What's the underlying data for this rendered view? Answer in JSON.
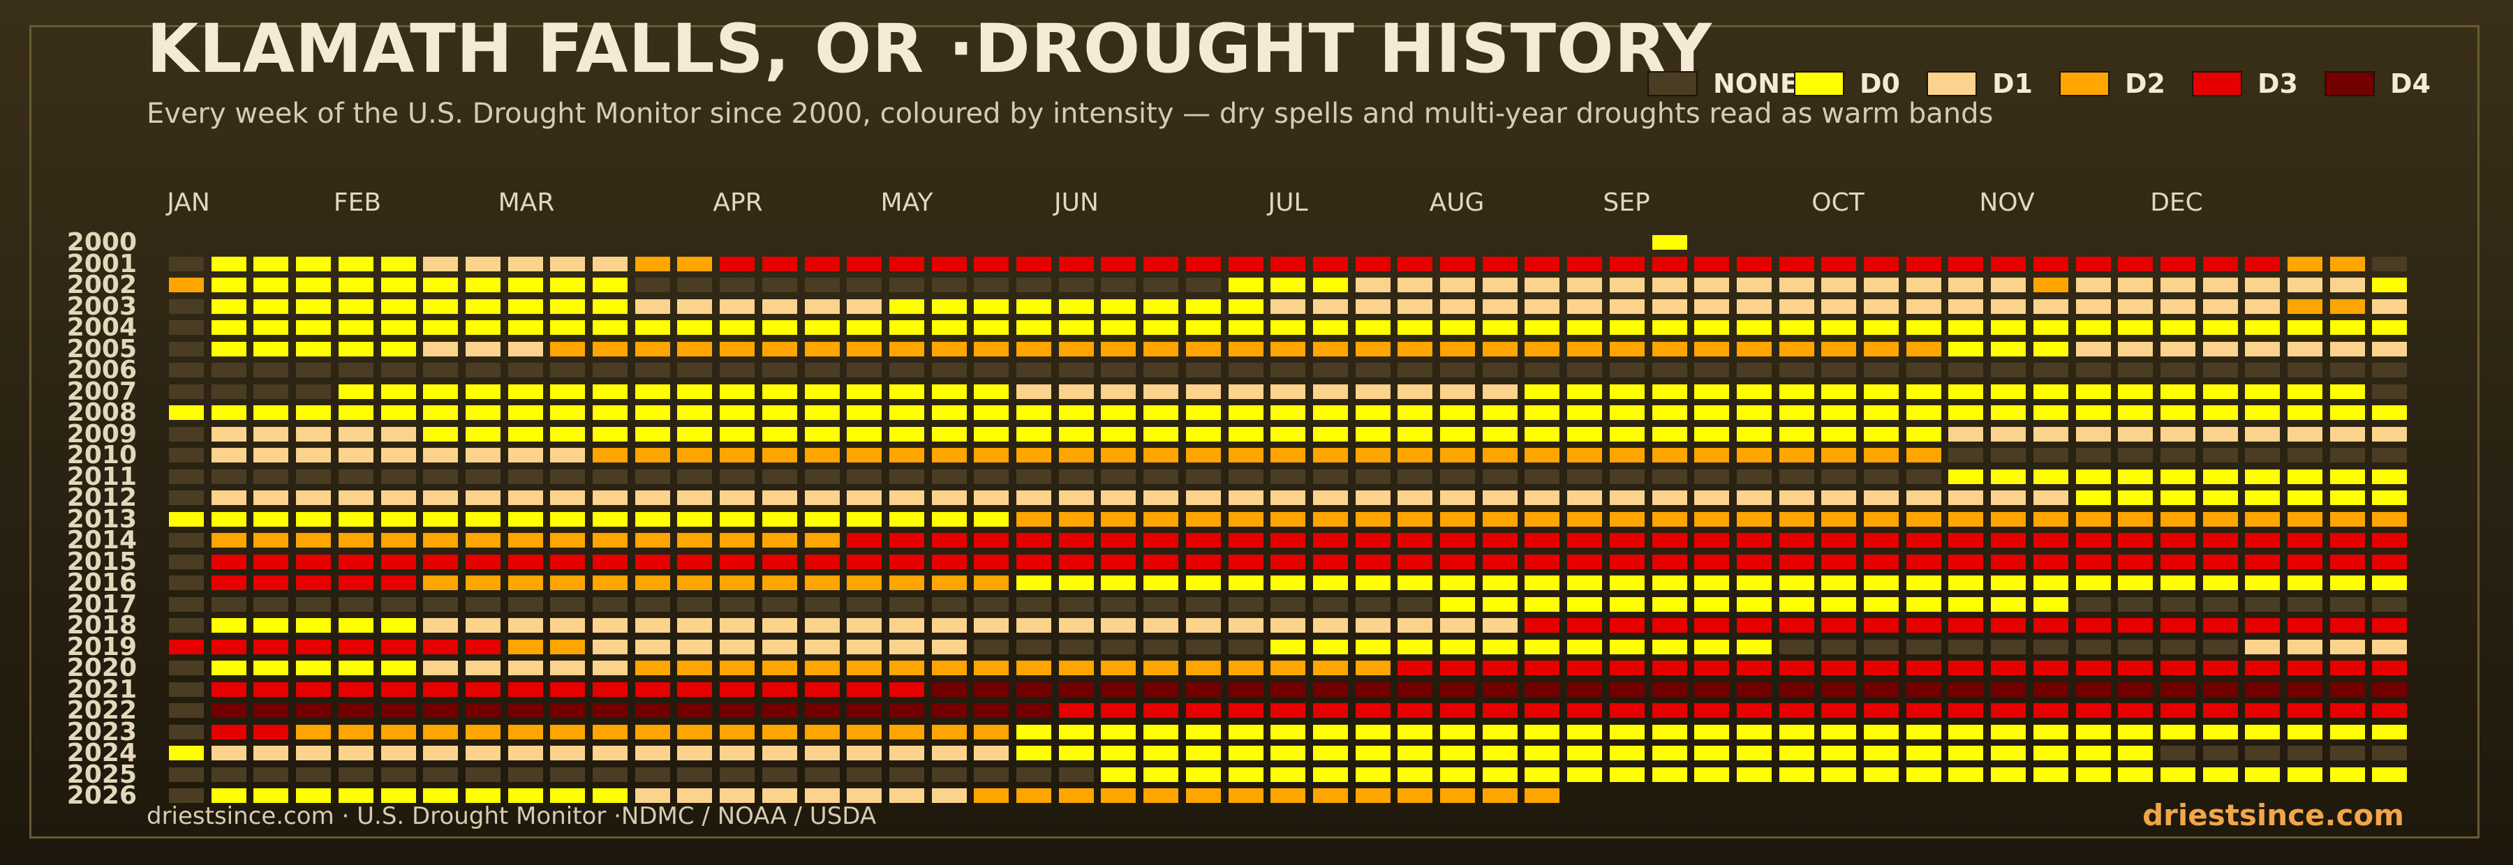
{
  "header": {
    "title": "KLAMATH FALLS, OR ·DROUGHT HISTORY",
    "subtitle": "Every week of the U.S. Drought Monitor since 2000, coloured by intensity — dry spells and multi-year droughts read as warm bands"
  },
  "legend": [
    {
      "label": "NONE",
      "color": "#4a3d24"
    },
    {
      "label": "D0",
      "color": "#ffff00"
    },
    {
      "label": "D1",
      "color": "#fcd38c"
    },
    {
      "label": "D2",
      "color": "#ffa500"
    },
    {
      "label": "D3",
      "color": "#e60000"
    },
    {
      "label": "D4",
      "color": "#720000"
    }
  ],
  "footer": {
    "source": "driestsince.com  · U.S. Drought Monitor ·NDMC / NOAA / USDA",
    "brand": "driestsince.com"
  },
  "chart_data": {
    "type": "heatmap",
    "title": "KLAMATH FALLS, OR ·DROUGHT HISTORY",
    "x_axis": {
      "labels": [
        "JAN",
        "FEB",
        "MAR",
        "APR",
        "MAY",
        "JUN",
        "JUL",
        "AUG",
        "SEP",
        "OCT",
        "NOV",
        "DEC"
      ],
      "weeks_per_year": 53
    },
    "y_axis": {
      "labels": [
        "2000",
        "2001",
        "2002",
        "2003",
        "2004",
        "2005",
        "2006",
        "2007",
        "2008",
        "2009",
        "2010",
        "2011",
        "2012",
        "2013",
        "2014",
        "2015",
        "2016",
        "2017",
        "2018",
        "2019",
        "2020",
        "2021",
        "2022",
        "2023",
        "2024",
        "2025",
        "2026"
      ]
    },
    "categories": [
      "NONE",
      "D0",
      "D1",
      "D2",
      "D3",
      "D4"
    ],
    "levels_legend": "-1 = no data, 0 = NONE, 1 = D0, 2 = D1, 3 = D2, 4 = D3, 5 = D4",
    "rows": [
      {
        "year": "2000",
        "segments": [
          [
            0,
            35,
            -1
          ],
          [
            35,
            36,
            1
          ],
          [
            36,
            53,
            -1
          ]
        ]
      },
      {
        "year": "2001",
        "segments": [
          [
            0,
            1,
            0
          ],
          [
            1,
            6,
            1
          ],
          [
            6,
            11,
            2
          ],
          [
            11,
            13,
            3
          ],
          [
            13,
            50,
            4
          ],
          [
            50,
            52,
            3
          ],
          [
            52,
            53,
            0
          ]
        ]
      },
      {
        "year": "2002",
        "segments": [
          [
            0,
            1,
            3
          ],
          [
            1,
            11,
            1
          ],
          [
            11,
            25,
            0
          ],
          [
            25,
            28,
            1
          ],
          [
            28,
            44,
            2
          ],
          [
            44,
            45,
            3
          ],
          [
            45,
            52,
            2
          ],
          [
            52,
            53,
            1
          ]
        ]
      },
      {
        "year": "2003",
        "segments": [
          [
            0,
            1,
            0
          ],
          [
            1,
            11,
            1
          ],
          [
            11,
            17,
            2
          ],
          [
            17,
            26,
            1
          ],
          [
            26,
            50,
            2
          ],
          [
            50,
            52,
            3
          ],
          [
            52,
            53,
            2
          ]
        ]
      },
      {
        "year": "2004",
        "segments": [
          [
            0,
            1,
            0
          ],
          [
            1,
            53,
            1
          ]
        ]
      },
      {
        "year": "2005",
        "segments": [
          [
            0,
            1,
            0
          ],
          [
            1,
            6,
            1
          ],
          [
            6,
            9,
            2
          ],
          [
            9,
            42,
            3
          ],
          [
            42,
            45,
            1
          ],
          [
            45,
            53,
            2
          ]
        ]
      },
      {
        "year": "2006",
        "segments": [
          [
            0,
            53,
            0
          ]
        ]
      },
      {
        "year": "2007",
        "segments": [
          [
            0,
            4,
            0
          ],
          [
            4,
            20,
            1
          ],
          [
            20,
            32,
            2
          ],
          [
            32,
            52,
            1
          ],
          [
            52,
            53,
            0
          ]
        ]
      },
      {
        "year": "2008",
        "segments": [
          [
            0,
            53,
            1
          ]
        ]
      },
      {
        "year": "2009",
        "segments": [
          [
            0,
            1,
            0
          ],
          [
            1,
            6,
            2
          ],
          [
            6,
            8,
            1
          ],
          [
            8,
            42,
            1
          ],
          [
            42,
            53,
            2
          ]
        ]
      },
      {
        "year": "2010",
        "segments": [
          [
            0,
            1,
            0
          ],
          [
            1,
            10,
            2
          ],
          [
            10,
            42,
            3
          ],
          [
            42,
            53,
            0
          ]
        ]
      },
      {
        "year": "2011",
        "segments": [
          [
            0,
            42,
            0
          ],
          [
            42,
            53,
            1
          ]
        ]
      },
      {
        "year": "2012",
        "segments": [
          [
            0,
            1,
            0
          ],
          [
            1,
            45,
            2
          ],
          [
            45,
            53,
            1
          ]
        ]
      },
      {
        "year": "2013",
        "segments": [
          [
            0,
            1,
            1
          ],
          [
            1,
            20,
            1
          ],
          [
            20,
            53,
            3
          ]
        ]
      },
      {
        "year": "2014",
        "segments": [
          [
            0,
            1,
            0
          ],
          [
            1,
            16,
            3
          ],
          [
            16,
            53,
            4
          ]
        ]
      },
      {
        "year": "2015",
        "segments": [
          [
            0,
            1,
            0
          ],
          [
            1,
            53,
            4
          ]
        ]
      },
      {
        "year": "2016",
        "segments": [
          [
            0,
            1,
            0
          ],
          [
            1,
            6,
            4
          ],
          [
            6,
            20,
            3
          ],
          [
            20,
            34,
            1
          ],
          [
            34,
            53,
            1
          ]
        ]
      },
      {
        "year": "2017",
        "segments": [
          [
            0,
            1,
            0
          ],
          [
            1,
            30,
            0
          ],
          [
            30,
            45,
            1
          ],
          [
            45,
            53,
            0
          ]
        ]
      },
      {
        "year": "2018",
        "segments": [
          [
            0,
            1,
            0
          ],
          [
            1,
            6,
            1
          ],
          [
            6,
            32,
            2
          ],
          [
            32,
            53,
            4
          ]
        ]
      },
      {
        "year": "2019",
        "segments": [
          [
            0,
            8,
            4
          ],
          [
            8,
            10,
            3
          ],
          [
            10,
            19,
            2
          ],
          [
            19,
            26,
            0
          ],
          [
            26,
            38,
            1
          ],
          [
            38,
            49,
            0
          ],
          [
            49,
            53,
            2
          ]
        ]
      },
      {
        "year": "2020",
        "segments": [
          [
            0,
            1,
            0
          ],
          [
            1,
            6,
            1
          ],
          [
            6,
            11,
            2
          ],
          [
            11,
            29,
            3
          ],
          [
            29,
            53,
            4
          ]
        ]
      },
      {
        "year": "2021",
        "segments": [
          [
            0,
            1,
            0
          ],
          [
            1,
            18,
            4
          ],
          [
            18,
            53,
            5
          ]
        ]
      },
      {
        "year": "2022",
        "segments": [
          [
            0,
            1,
            0
          ],
          [
            1,
            21,
            5
          ],
          [
            21,
            53,
            4
          ]
        ]
      },
      {
        "year": "2023",
        "segments": [
          [
            0,
            1,
            0
          ],
          [
            1,
            3,
            4
          ],
          [
            3,
            20,
            3
          ],
          [
            20,
            53,
            1
          ]
        ]
      },
      {
        "year": "2024",
        "segments": [
          [
            0,
            1,
            1
          ],
          [
            1,
            20,
            2
          ],
          [
            20,
            33,
            1
          ],
          [
            33,
            47,
            1
          ],
          [
            47,
            53,
            0
          ]
        ]
      },
      {
        "year": "2025",
        "segments": [
          [
            0,
            1,
            0
          ],
          [
            1,
            22,
            0
          ],
          [
            22,
            53,
            1
          ]
        ]
      },
      {
        "year": "2026",
        "segments": [
          [
            0,
            1,
            0
          ],
          [
            1,
            11,
            1
          ],
          [
            11,
            19,
            2
          ],
          [
            19,
            33,
            3
          ],
          [
            33,
            53,
            -1
          ]
        ]
      }
    ]
  }
}
